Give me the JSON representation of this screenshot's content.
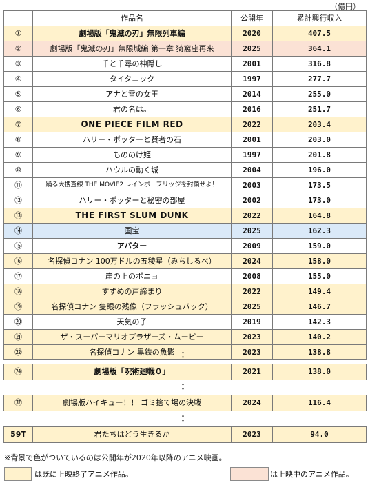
{
  "unit_label": "（億円）",
  "headers": {
    "rank": "",
    "title": "作品名",
    "year": "公開年",
    "revenue": "累計興行収入"
  },
  "rows": [
    {
      "rank": "①",
      "title": "劇場版「鬼滅の刃」無限列車編",
      "year": "2020",
      "revenue": "407.5",
      "status": "ended",
      "bold": true
    },
    {
      "rank": "②",
      "title": "劇場版「鬼滅の刃」無限城編 第一章 猗窩座再来",
      "year": "2025",
      "revenue": "364.1",
      "status": "showing",
      "bold": false
    },
    {
      "rank": "③",
      "title": "千と千尋の神隠し",
      "year": "2001",
      "revenue": "316.8",
      "status": "plain",
      "bold": false
    },
    {
      "rank": "④",
      "title": "タイタニック",
      "year": "1997",
      "revenue": "277.7",
      "status": "plain",
      "bold": false
    },
    {
      "rank": "⑤",
      "title": "アナと雪の女王",
      "year": "2014",
      "revenue": "255.0",
      "status": "plain",
      "bold": false
    },
    {
      "rank": "⑥",
      "title": "君の名は。",
      "year": "2016",
      "revenue": "251.7",
      "status": "plain",
      "bold": false
    },
    {
      "rank": "⑦",
      "title": "ONE PIECE FILM RED",
      "year": "2022",
      "revenue": "203.4",
      "status": "ended",
      "bold": true,
      "style": "big"
    },
    {
      "rank": "⑧",
      "title": "ハリー・ポッターと賢者の石",
      "year": "2001",
      "revenue": "203.0",
      "status": "plain",
      "bold": false
    },
    {
      "rank": "⑨",
      "title": "もののけ姫",
      "year": "1997",
      "revenue": "201.8",
      "status": "plain",
      "bold": false
    },
    {
      "rank": "⑩",
      "title": "ハウルの動く城",
      "year": "2004",
      "revenue": "196.0",
      "status": "plain",
      "bold": false
    },
    {
      "rank": "⑪",
      "title": "踊る大捜査線 THE MOVIE2 レインボーブリッジを封鎖せよ！",
      "year": "2003",
      "revenue": "173.5",
      "status": "plain",
      "bold": false,
      "style": "small"
    },
    {
      "rank": "⑫",
      "title": "ハリー・ポッターと秘密の部屋",
      "year": "2002",
      "revenue": "173.0",
      "status": "plain",
      "bold": false
    },
    {
      "rank": "⑬",
      "title": "THE FIRST SLUM DUNK",
      "year": "2022",
      "revenue": "164.8",
      "status": "ended",
      "bold": false,
      "style": "big"
    },
    {
      "rank": "⑭",
      "title": "国宝",
      "year": "2025",
      "revenue": "162.3",
      "status": "kokuho",
      "bold": false
    },
    {
      "rank": "⑮",
      "title": "アバター",
      "year": "2009",
      "revenue": "159.0",
      "status": "plain",
      "bold": true
    },
    {
      "rank": "⑯",
      "title": "名探偵コナン 100万ドルの五稜星（みちしるべ）",
      "year": "2024",
      "revenue": "158.0",
      "status": "ended",
      "bold": false
    },
    {
      "rank": "⑰",
      "title": "崖の上のポニョ",
      "year": "2008",
      "revenue": "155.0",
      "status": "plain",
      "bold": false
    },
    {
      "rank": "⑱",
      "title": "すずめの戸締まり",
      "year": "2022",
      "revenue": "149.4",
      "status": "ended",
      "bold": false
    },
    {
      "rank": "⑲",
      "title": "名探偵コナン 隻眼の残像（フラッシュバック）",
      "year": "2025",
      "revenue": "146.7",
      "status": "ended",
      "bold": false
    },
    {
      "rank": "⑳",
      "title": "天気の子",
      "year": "2019",
      "revenue": "142.3",
      "status": "plain",
      "bold": false
    },
    {
      "rank": "㉑",
      "title": "ザ・スーパーマリオブラザーズ・ムービー",
      "year": "2023",
      "revenue": "140.2",
      "status": "ended",
      "bold": false
    },
    {
      "rank": "㉒",
      "title": "名探偵コナン 黒鉄の魚影",
      "year": "2023",
      "revenue": "138.8",
      "status": "ended",
      "bold": false
    }
  ],
  "ellipsis": "：",
  "extra_rows": [
    {
      "rank": "㉔",
      "title": "劇場版「呪術廻戦０」",
      "year": "2021",
      "revenue": "138.0",
      "status": "ended"
    },
    {
      "rank": "㊲",
      "title": "劇場版ハイキュー！！ ゴミ捨て場の決戦",
      "year": "2024",
      "revenue": "116.4",
      "status": "ended"
    },
    {
      "rank": "59T",
      "title": "君たちはどう生きるか",
      "year": "2023",
      "revenue": "94.0",
      "status": "ended"
    }
  ],
  "note": "※背景で色がついているのは公開年が2020年以降のアニメ映画。",
  "legend": {
    "ended_label": "は既に上映終了アニメ作品。",
    "ended_color": "#fff2cc",
    "showing_label": "は上映中のアニメ作品。",
    "showing_color": "#fbe2d5"
  },
  "colors": {
    "kokuho": "#dae9f8",
    "border": "#7a7a7a"
  }
}
